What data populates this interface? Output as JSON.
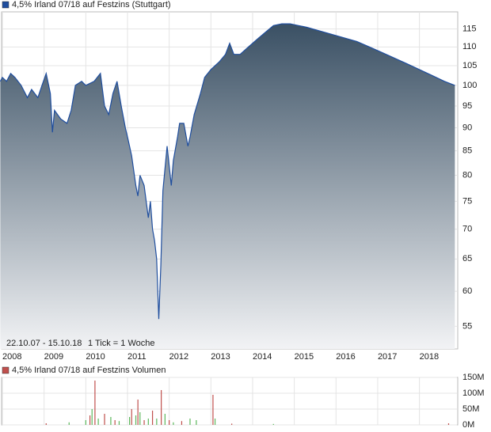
{
  "chart_data": [
    {
      "type": "area",
      "log_scale": true,
      "grid": true,
      "annotations": [
        "22.10.07 - 15.10.18",
        "1 Tick = 1 Woche"
      ],
      "x": [
        2007.95,
        2008.0,
        2008.1,
        2008.2,
        2008.3,
        2008.45,
        2008.6,
        2008.7,
        2008.85,
        2008.95,
        2009.05,
        2009.15,
        2009.2,
        2009.25,
        2009.4,
        2009.55,
        2009.65,
        2009.75,
        2009.9,
        2010.0,
        2010.2,
        2010.35,
        2010.45,
        2010.55,
        2010.65,
        2010.75,
        2010.85,
        2010.95,
        2011.0,
        2011.1,
        2011.2,
        2011.25,
        2011.3,
        2011.4,
        2011.5,
        2011.55,
        2011.6,
        2011.65,
        2011.7,
        2011.75,
        2011.8,
        2011.85,
        2011.95,
        2012.0,
        2012.05,
        2012.1,
        2012.2,
        2012.25,
        2012.35,
        2012.45,
        2012.5,
        2012.6,
        2012.75,
        2012.85,
        2013.0,
        2013.2,
        2013.35,
        2013.45,
        2013.55,
        2013.7,
        2013.9,
        2014.1,
        2014.3,
        2014.5,
        2014.7,
        2014.9,
        2015.1,
        2015.3,
        2015.6,
        2015.9,
        2016.2,
        2016.5,
        2016.8,
        2017.1,
        2017.4,
        2017.7,
        2018.0,
        2018.3,
        2018.6,
        2018.85
      ],
      "series": [
        {
          "name": "4,5% Irland 07/18 auf Festzins (Stuttgart)",
          "color": "#1f4e9e",
          "values": [
            101,
            102,
            101,
            103,
            102,
            100,
            97,
            99,
            97,
            100,
            103,
            98,
            89,
            94,
            92,
            91,
            94,
            100,
            101,
            100,
            101,
            103,
            95,
            93,
            98,
            101,
            95,
            90,
            88,
            84,
            78,
            76,
            80,
            78,
            72,
            75,
            70,
            68,
            65,
            56,
            64,
            77,
            86,
            82,
            78,
            83,
            88,
            91,
            91,
            86,
            88,
            93,
            98,
            102,
            104,
            106,
            108,
            111,
            108,
            108,
            110,
            112,
            114,
            116,
            116.5,
            116.5,
            116,
            115.5,
            114.5,
            113.5,
            112.5,
            111.5,
            110,
            108.5,
            107,
            105.5,
            104,
            102.5,
            101,
            100
          ]
        }
      ],
      "xlim": [
        2008,
        2018.9
      ],
      "xticks": [
        2008,
        2009,
        2010,
        2011,
        2012,
        2013,
        2014,
        2015,
        2016,
        2017,
        2018
      ],
      "ylim": [
        52,
        120
      ],
      "yticks": [
        55,
        60,
        65,
        70,
        75,
        80,
        85,
        90,
        95,
        100,
        105,
        110,
        115
      ]
    },
    {
      "type": "bar",
      "grid": true,
      "x": [
        2009.05,
        2009.6,
        2010.0,
        2010.1,
        2010.15,
        2010.22,
        2010.3,
        2010.45,
        2010.6,
        2010.7,
        2010.8,
        2011.05,
        2011.1,
        2011.2,
        2011.25,
        2011.3,
        2011.4,
        2011.5,
        2011.6,
        2011.7,
        2011.81,
        2011.9,
        2012.0,
        2012.1,
        2012.3,
        2012.5,
        2012.65,
        2013.05,
        2013.1,
        2013.5,
        2014.5,
        2018.7
      ],
      "series": [
        {
          "name": "4,5% Irland 07/18 auf Festzins Volumen",
          "color": "#c0504d",
          "values": [
            5000000,
            8000000,
            15000000,
            30000000,
            50000000,
            140000000,
            20000000,
            35000000,
            25000000,
            15000000,
            12000000,
            25000000,
            50000000,
            30000000,
            80000000,
            40000000,
            15000000,
            20000000,
            45000000,
            20000000,
            110000000,
            35000000,
            15000000,
            8000000,
            12000000,
            20000000,
            15000000,
            95000000,
            20000000,
            4000000,
            3000000,
            5000000
          ],
          "bar_colors": [
            "#c0504d",
            "#5cb85c",
            "#5cb85c",
            "#c0504d",
            "#5cb85c",
            "#c0504d",
            "#5cb85c",
            "#c0504d",
            "#5cb85c",
            "#c0504d",
            "#5cb85c",
            "#5cb85c",
            "#c0504d",
            "#5cb85c",
            "#c0504d",
            "#5cb85c",
            "#c0504d",
            "#5cb85c",
            "#c0504d",
            "#5cb85c",
            "#c0504d",
            "#5cb85c",
            "#c0504d",
            "#5cb85c",
            "#c0504d",
            "#5cb85c",
            "#5cb85c",
            "#c0504d",
            "#5cb85c",
            "#c0504d",
            "#5cb85c",
            "#c0504d"
          ]
        }
      ],
      "xlim": [
        2008,
        2018.9
      ],
      "ylim": [
        0,
        150000000
      ],
      "yticks": [
        {
          "value": 0,
          "label": "0M"
        },
        {
          "value": 50000000,
          "label": "50M"
        },
        {
          "value": 100000000,
          "label": "100M"
        },
        {
          "value": 150000000,
          "label": "150M"
        }
      ]
    }
  ]
}
